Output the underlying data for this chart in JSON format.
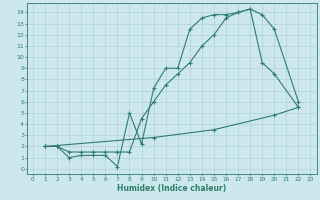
{
  "line1": {
    "x": [
      1,
      2,
      3,
      4,
      5,
      6,
      7,
      8,
      9,
      10,
      11,
      12,
      13,
      14,
      15,
      16,
      17,
      18,
      19,
      20,
      22
    ],
    "y": [
      2,
      2,
      1,
      1.2,
      1.2,
      1.2,
      0.2,
      5.0,
      2.2,
      7.2,
      9.0,
      9.0,
      12.5,
      13.5,
      13.8,
      13.8,
      14.0,
      14.3,
      13.8,
      12.5,
      6.0
    ]
  },
  "line2": {
    "x": [
      1,
      2,
      3,
      4,
      5,
      6,
      7,
      8,
      9,
      10,
      11,
      12,
      13,
      14,
      15,
      16,
      17,
      18,
      19,
      20,
      22
    ],
    "y": [
      2,
      2,
      1.5,
      1.5,
      1.5,
      1.5,
      1.5,
      1.5,
      4.5,
      6.0,
      7.5,
      8.5,
      9.5,
      11.0,
      12.0,
      13.5,
      14.0,
      14.3,
      9.5,
      8.5,
      5.5
    ]
  },
  "line3": {
    "x": [
      1,
      10,
      15,
      20,
      22
    ],
    "y": [
      2,
      2.8,
      3.5,
      4.8,
      5.5
    ]
  },
  "color": "#2e7d6e",
  "bg_color": "#cde8ec",
  "grid_color": "#aacdd4",
  "xlim": [
    -0.5,
    23.5
  ],
  "ylim": [
    -0.5,
    14.8
  ],
  "xticks": [
    0,
    1,
    2,
    3,
    4,
    5,
    6,
    7,
    8,
    9,
    10,
    11,
    12,
    13,
    14,
    15,
    16,
    17,
    18,
    19,
    20,
    21,
    22,
    23
  ],
  "yticks": [
    0,
    1,
    2,
    3,
    4,
    5,
    6,
    7,
    8,
    9,
    10,
    11,
    12,
    13,
    14
  ],
  "xlabel": "Humidex (Indice chaleur)",
  "marker": "+"
}
